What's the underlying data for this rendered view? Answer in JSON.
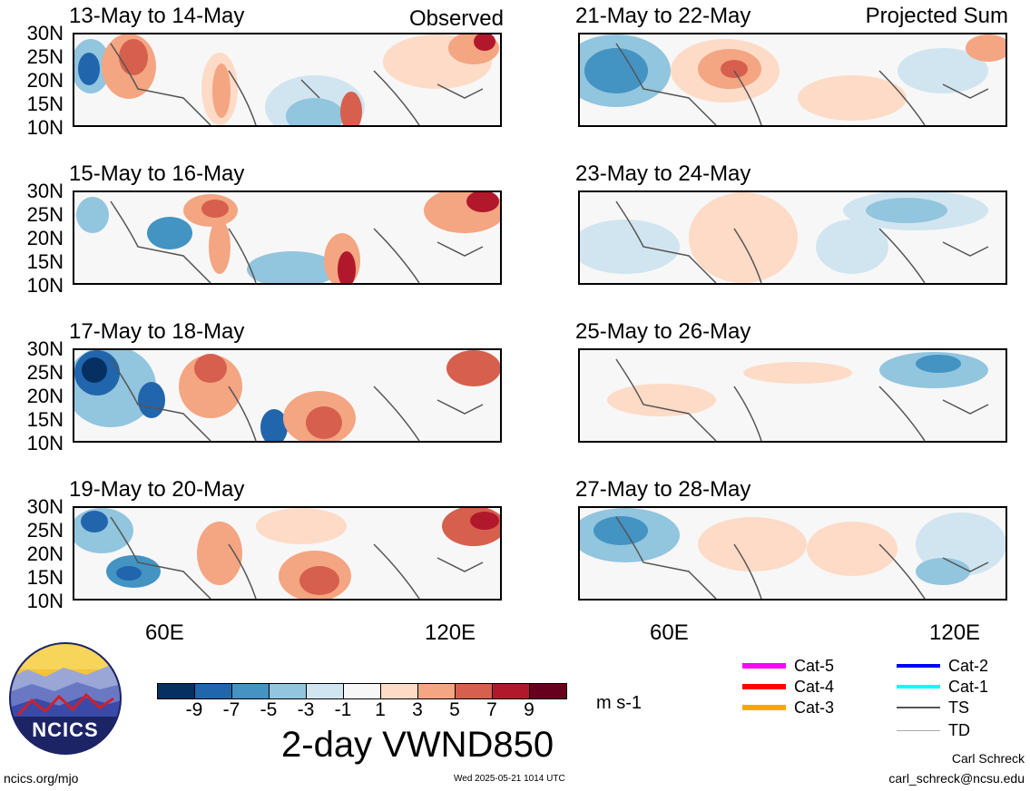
{
  "panels": [
    {
      "title": "13-May to 14-May",
      "tag": "Observed"
    },
    {
      "title": "15-May to 16-May",
      "tag": ""
    },
    {
      "title": "17-May to 18-May",
      "tag": ""
    },
    {
      "title": "19-May to 20-May",
      "tag": ""
    },
    {
      "title": "21-May to 22-May",
      "tag": "Projected Sum"
    },
    {
      "title": "23-May to 24-May",
      "tag": ""
    },
    {
      "title": "25-May to 26-May",
      "tag": ""
    },
    {
      "title": "27-May to 28-May",
      "tag": ""
    }
  ],
  "lat_labels": [
    "30N",
    "25N",
    "20N",
    "15N",
    "10N"
  ],
  "lon_labels": [
    "60E",
    "120E"
  ],
  "colorbar": {
    "colors": [
      "#053061",
      "#2166ac",
      "#4393c3",
      "#92c5de",
      "#d1e5f0",
      "#f7f7f7",
      "#fddbc7",
      "#f4a582",
      "#d6604d",
      "#b2182b",
      "#67001f"
    ],
    "ticks": [
      "-9",
      "-7",
      "-5",
      "-3",
      "-1",
      "1",
      "3",
      "5",
      "7",
      "9"
    ],
    "units": "m s-1",
    "title": "2-day VWND850"
  },
  "legend": [
    {
      "label": "Cat-5",
      "color": "#ff00ff"
    },
    {
      "label": "Cat-4",
      "color": "#ff0000"
    },
    {
      "label": "Cat-3",
      "color": "#ffa500"
    },
    {
      "label": "Cat-2",
      "color": "#0000ff"
    },
    {
      "label": "Cat-1",
      "color": "#00ffff"
    },
    {
      "label": "TS",
      "color": "#555555"
    },
    {
      "label": "TD",
      "color": "#aaaaaa"
    }
  ],
  "logo_text": "NCICS",
  "footer": {
    "left": "ncics.org/mjo",
    "timestamp": "Wed 2025-05-21 1014 UTC",
    "author": "Carl Schreck",
    "email": "carl_schreck@ncsu.edu"
  }
}
